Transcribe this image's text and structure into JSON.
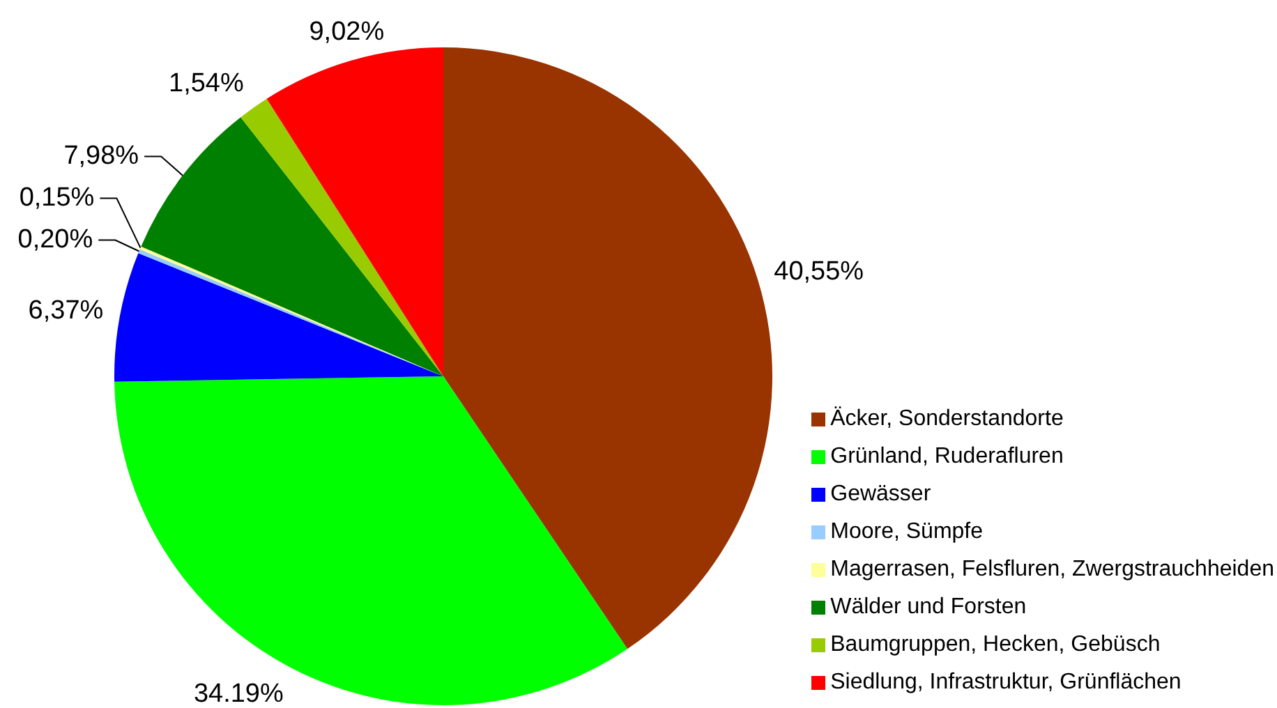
{
  "chart_data": {
    "type": "pie",
    "categories": [
      "Äcker, Sonderstandorte",
      "Grünland, Ruderafluren",
      "Gewässer",
      "Moore, Sümpfe",
      "Magerrasen, Felsfluren, Zwergstrauchheiden",
      "Wälder und Forsten",
      "Baumgruppen, Hecken, Gebüsch",
      "Siedlung, Infrastruktur, Grünflächen"
    ],
    "values": [
      40.55,
      34.19,
      6.37,
      0.2,
      0.15,
      7.98,
      1.54,
      9.02
    ],
    "colors": [
      "#993300",
      "#00ff00",
      "#0000ff",
      "#99ccff",
      "#ffff99",
      "#008000",
      "#99cc00",
      "#ff0000"
    ],
    "value_labels": [
      "40,55%",
      "34.19%",
      "6,37%",
      "0,20%",
      "0,15%",
      "7,98%",
      "1,54%",
      "9,02%"
    ],
    "legend": "bottom right"
  }
}
